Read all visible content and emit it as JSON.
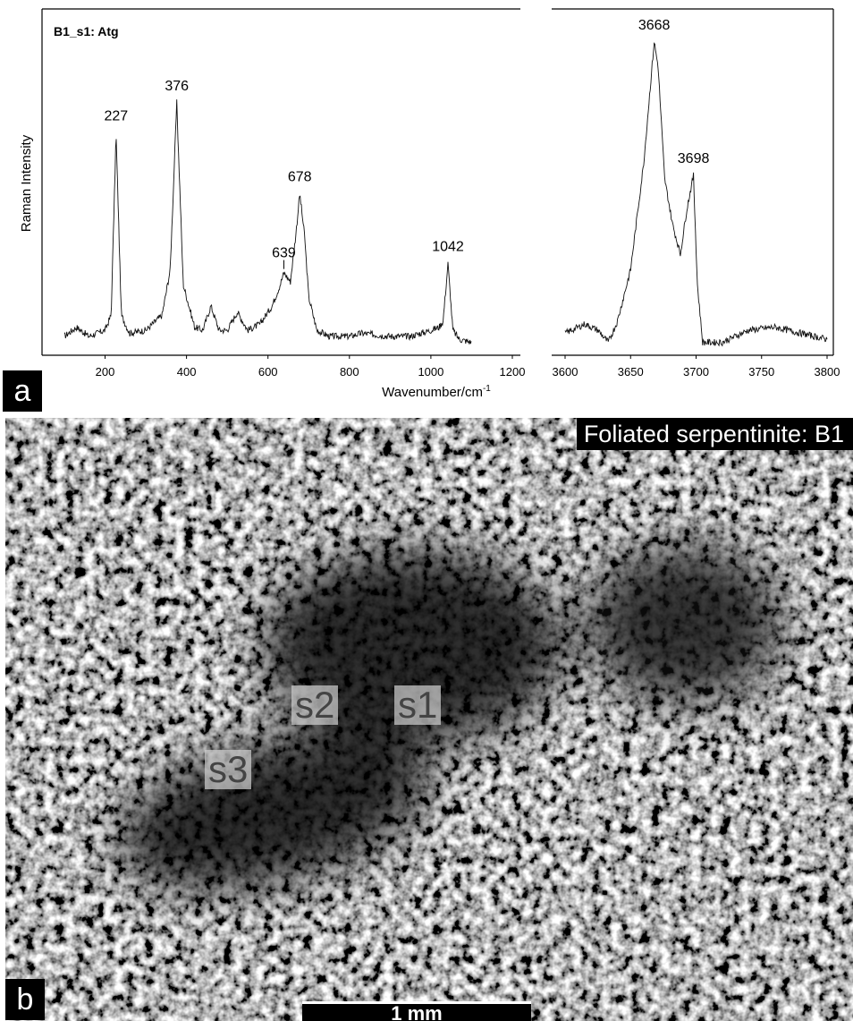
{
  "chart_data": {
    "type": "line",
    "title": "B1_s1: Atg",
    "ylabel": "Raman Intensity",
    "xlabel": "Wavenumber/cm",
    "xlabel_superscript": "-1",
    "y_ticks_shown": false,
    "axis_break": true,
    "panels": [
      {
        "name": "low",
        "xlim": [
          100,
          1200
        ],
        "ticks": [
          200,
          400,
          600,
          800,
          1000,
          1200
        ],
        "x": [
          100,
          130,
          160,
          200,
          215,
          227,
          240,
          260,
          300,
          340,
          360,
          376,
          392,
          420,
          440,
          460,
          480,
          500,
          525,
          550,
          580,
          610,
          630,
          639,
          655,
          668,
          678,
          690,
          700,
          720,
          750,
          800,
          830,
          900,
          950,
          1000,
          1020,
          1030,
          1042,
          1054,
          1070,
          1100
        ],
        "values": [
          0.03,
          0.06,
          0.03,
          0.05,
          0.1,
          0.7,
          0.1,
          0.04,
          0.05,
          0.1,
          0.25,
          0.8,
          0.2,
          0.06,
          0.05,
          0.13,
          0.05,
          0.05,
          0.11,
          0.05,
          0.07,
          0.13,
          0.2,
          0.24,
          0.21,
          0.36,
          0.5,
          0.36,
          0.16,
          0.05,
          0.03,
          0.03,
          0.04,
          0.03,
          0.03,
          0.05,
          0.06,
          0.08,
          0.27,
          0.05,
          0.02,
          0.01
        ]
      },
      {
        "name": "high",
        "xlim": [
          3590,
          3800
        ],
        "ticks": [
          3600,
          3650,
          3700,
          3750,
          3800
        ],
        "x": [
          3600,
          3615,
          3625,
          3633,
          3640,
          3650,
          3660,
          3665,
          3668,
          3671,
          3676,
          3682,
          3688,
          3693,
          3698,
          3701,
          3705,
          3720,
          3740,
          3760,
          3780,
          3800
        ],
        "values": [
          0.04,
          0.07,
          0.05,
          0.01,
          0.08,
          0.25,
          0.6,
          0.85,
          1.0,
          0.92,
          0.55,
          0.4,
          0.3,
          0.45,
          0.56,
          0.2,
          0.01,
          0.01,
          0.05,
          0.06,
          0.04,
          0.02
        ]
      }
    ],
    "annotations": [
      {
        "label": "227",
        "x": 227,
        "y": 0.7
      },
      {
        "label": "376",
        "x": 376,
        "y": 0.8
      },
      {
        "label": "639",
        "x": 639,
        "y": 0.24
      },
      {
        "label": "678",
        "x": 678,
        "y": 0.5
      },
      {
        "label": "1042",
        "x": 1042,
        "y": 0.27
      },
      {
        "label": "3668",
        "x": 3668,
        "y": 1.0
      },
      {
        "label": "3698",
        "x": 3698,
        "y": 0.56
      }
    ]
  },
  "panels": {
    "a_label": "a",
    "b_label": "b"
  },
  "micrograph": {
    "title": "Foliated serpentinite: B1",
    "spots": [
      "s1",
      "s2",
      "s3"
    ],
    "scale_bar_label": "1 mm"
  }
}
